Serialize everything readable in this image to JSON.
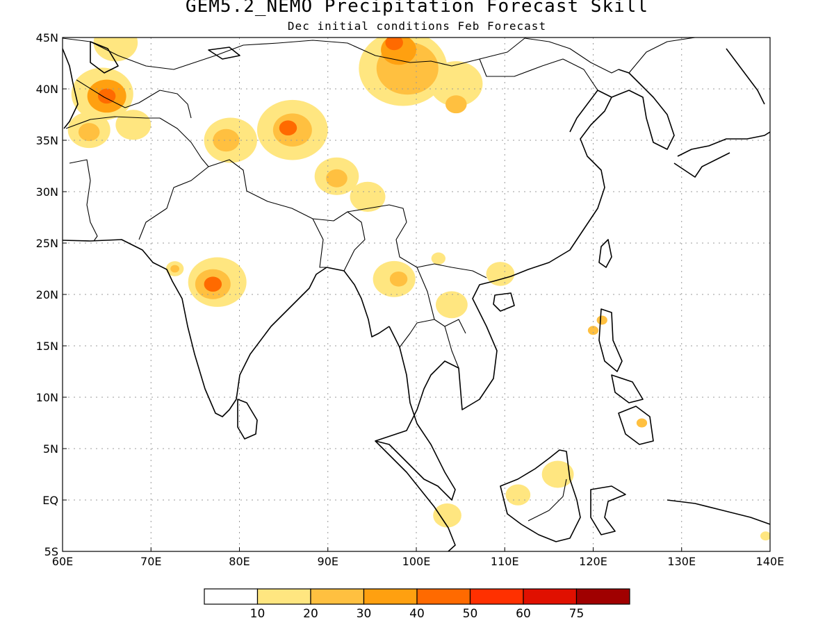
{
  "title": "GEM5.2_NEMO Precipitation Forecast Skill",
  "subtitle": "Dec initial conditions  Feb Forecast",
  "map": {
    "lon_range": [
      60,
      140
    ],
    "lat_range": [
      -5,
      45
    ],
    "x_ticks": [
      {
        "v": 60,
        "label": "60E"
      },
      {
        "v": 70,
        "label": "70E"
      },
      {
        "v": 80,
        "label": "80E"
      },
      {
        "v": 90,
        "label": "90E"
      },
      {
        "v": 100,
        "label": "100E"
      },
      {
        "v": 110,
        "label": "110E"
      },
      {
        "v": 120,
        "label": "120E"
      },
      {
        "v": 130,
        "label": "130E"
      },
      {
        "v": 140,
        "label": "140E"
      }
    ],
    "y_ticks": [
      {
        "v": 45,
        "label": "45N"
      },
      {
        "v": 40,
        "label": "40N"
      },
      {
        "v": 35,
        "label": "35N"
      },
      {
        "v": 30,
        "label": "30N"
      },
      {
        "v": 25,
        "label": "25N"
      },
      {
        "v": 20,
        "label": "20N"
      },
      {
        "v": 15,
        "label": "15N"
      },
      {
        "v": 10,
        "label": "10N"
      },
      {
        "v": 5,
        "label": "5N"
      },
      {
        "v": 0,
        "label": "EQ"
      },
      {
        "v": -5,
        "label": "5S"
      }
    ],
    "gridlines": true
  },
  "colorbar": {
    "colors": [
      "#ffffff",
      "#ffe680",
      "#ffc040",
      "#ffa010",
      "#ff6a00",
      "#ff3000",
      "#e01000",
      "#a00000"
    ],
    "labels": [
      "10",
      "20",
      "30",
      "40",
      "50",
      "60",
      "75"
    ]
  },
  "skill_regions": [
    {
      "lon": 64.5,
      "lat": 39.5,
      "r": 3.5,
      "level": 1
    },
    {
      "lon": 65.0,
      "lat": 39.3,
      "r": 2.2,
      "level": 3
    },
    {
      "lon": 65.0,
      "lat": 39.3,
      "r": 1.0,
      "level": 4
    },
    {
      "lon": 63.0,
      "lat": 36.0,
      "r": 2.4,
      "level": 1
    },
    {
      "lon": 63.0,
      "lat": 35.8,
      "r": 1.2,
      "level": 2
    },
    {
      "lon": 68.0,
      "lat": 36.5,
      "r": 2.0,
      "level": 1
    },
    {
      "lon": 66.0,
      "lat": 44.5,
      "r": 2.5,
      "level": 1
    },
    {
      "lon": 86.0,
      "lat": 36.0,
      "r": 4.0,
      "level": 1
    },
    {
      "lon": 86.0,
      "lat": 36.0,
      "r": 2.2,
      "level": 2
    },
    {
      "lon": 85.5,
      "lat": 36.2,
      "r": 1.0,
      "level": 4
    },
    {
      "lon": 79.0,
      "lat": 35.0,
      "r": 3.0,
      "level": 1
    },
    {
      "lon": 78.5,
      "lat": 35.0,
      "r": 1.5,
      "level": 2
    },
    {
      "lon": 91.0,
      "lat": 31.5,
      "r": 2.5,
      "level": 1
    },
    {
      "lon": 91.0,
      "lat": 31.3,
      "r": 1.2,
      "level": 2
    },
    {
      "lon": 98.5,
      "lat": 42.0,
      "r": 5.0,
      "level": 1
    },
    {
      "lon": 99.0,
      "lat": 42.0,
      "r": 3.5,
      "level": 2
    },
    {
      "lon": 98.0,
      "lat": 43.8,
      "r": 2.0,
      "level": 3
    },
    {
      "lon": 97.5,
      "lat": 44.5,
      "r": 1.0,
      "level": 4
    },
    {
      "lon": 104.5,
      "lat": 40.5,
      "r": 3.0,
      "level": 1
    },
    {
      "lon": 104.5,
      "lat": 38.5,
      "r": 1.2,
      "level": 2
    },
    {
      "lon": 77.5,
      "lat": 21.2,
      "r": 3.3,
      "level": 1
    },
    {
      "lon": 77.0,
      "lat": 21.0,
      "r": 2.0,
      "level": 2
    },
    {
      "lon": 77.0,
      "lat": 21.0,
      "r": 1.0,
      "level": 4
    },
    {
      "lon": 72.7,
      "lat": 22.5,
      "r": 1.0,
      "level": 1
    },
    {
      "lon": 72.7,
      "lat": 22.5,
      "r": 0.5,
      "level": 2
    },
    {
      "lon": 97.5,
      "lat": 21.5,
      "r": 2.4,
      "level": 1
    },
    {
      "lon": 98.0,
      "lat": 21.5,
      "r": 1.0,
      "level": 2
    },
    {
      "lon": 104.0,
      "lat": 19.0,
      "r": 1.8,
      "level": 1
    },
    {
      "lon": 109.5,
      "lat": 22.0,
      "r": 1.6,
      "level": 1
    },
    {
      "lon": 102.5,
      "lat": 23.5,
      "r": 0.8,
      "level": 1
    },
    {
      "lon": 94.5,
      "lat": 29.5,
      "r": 2.0,
      "level": 1
    },
    {
      "lon": 116.0,
      "lat": 2.5,
      "r": 1.8,
      "level": 1
    },
    {
      "lon": 111.5,
      "lat": 0.5,
      "r": 1.4,
      "level": 1
    },
    {
      "lon": 103.5,
      "lat": -1.5,
      "r": 1.6,
      "level": 1
    },
    {
      "lon": 120.0,
      "lat": 16.5,
      "r": 0.6,
      "level": 2
    },
    {
      "lon": 121.0,
      "lat": 17.5,
      "r": 0.6,
      "level": 2
    },
    {
      "lon": 125.5,
      "lat": 7.5,
      "r": 0.6,
      "level": 2
    },
    {
      "lon": 139.5,
      "lat": -3.5,
      "r": 0.6,
      "level": 1
    }
  ]
}
